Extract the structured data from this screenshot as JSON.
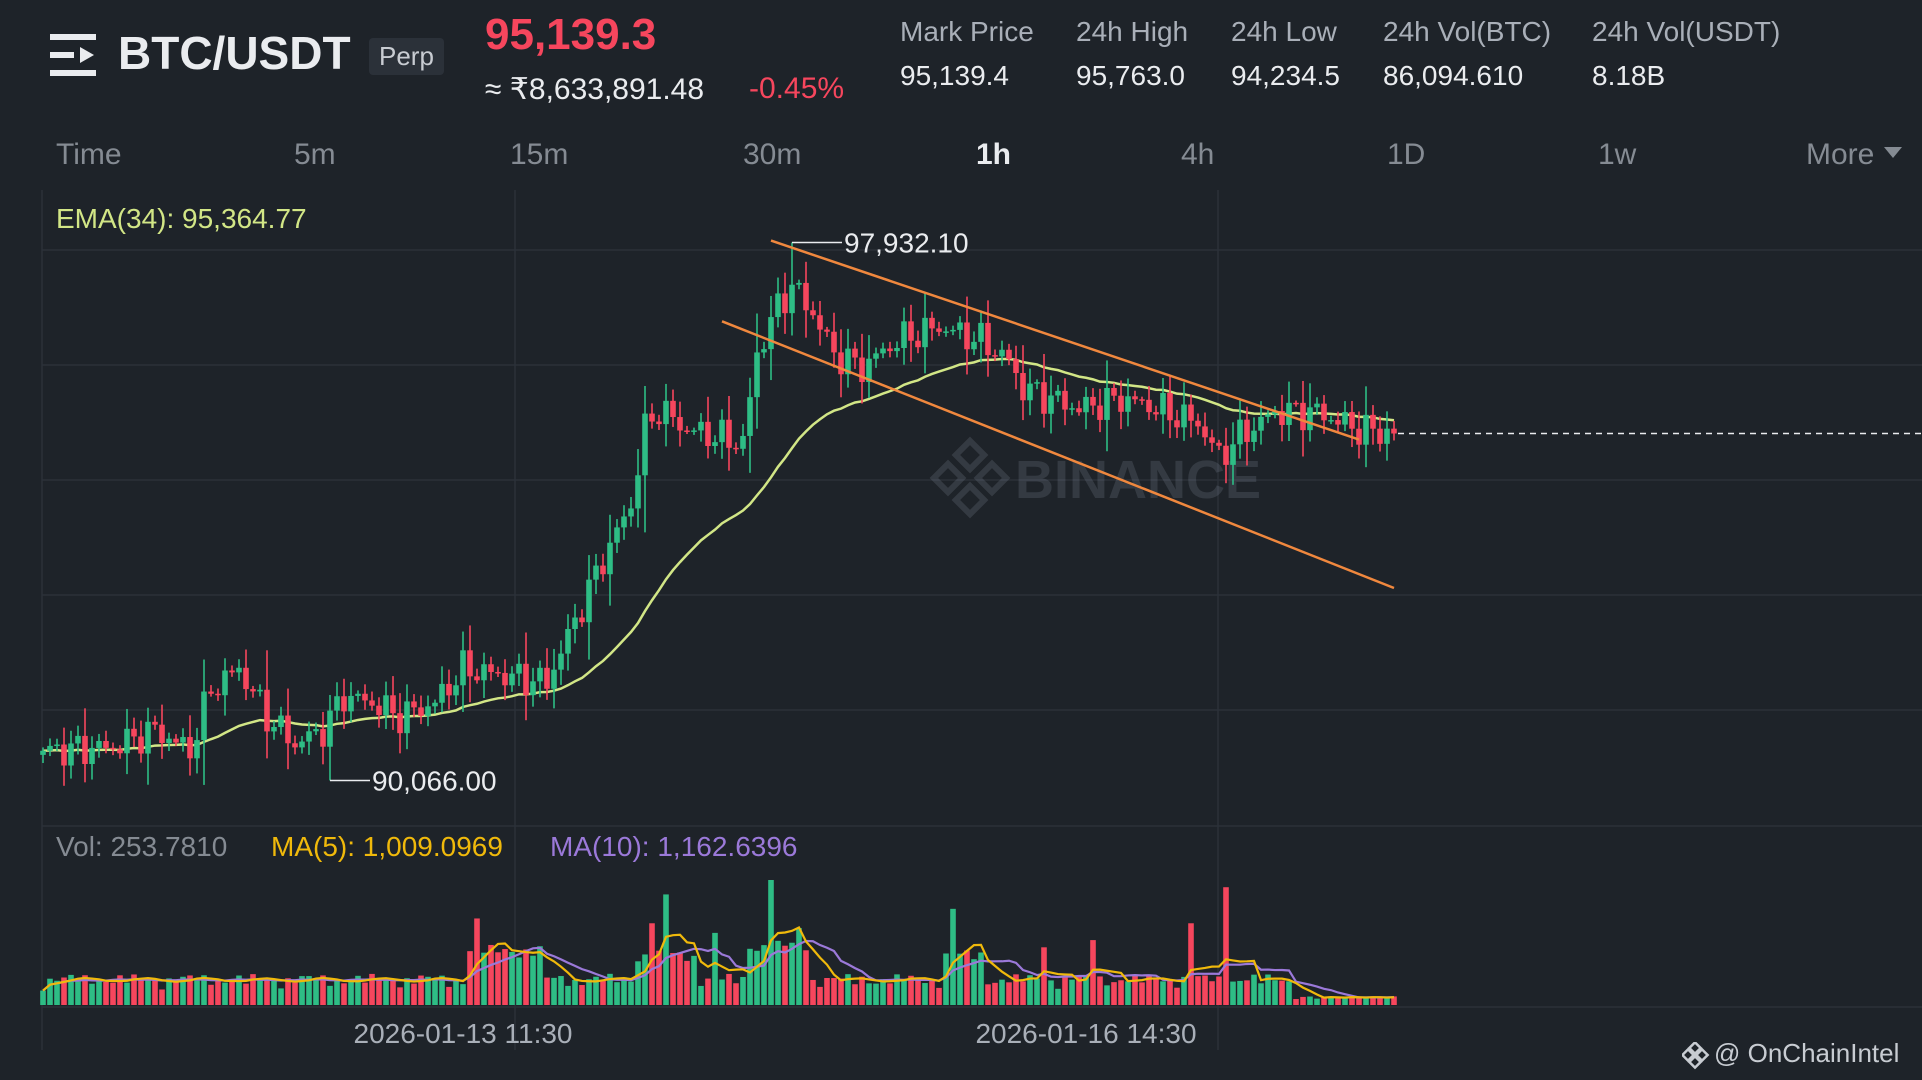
{
  "header": {
    "symbol": "BTC/USDT",
    "badge": "Perp",
    "last_price": "95,139.3",
    "fiat_price": "≈ ₹8,633,891.48",
    "change": "-0.45%",
    "stats": [
      {
        "label": "Mark Price",
        "value": "95,139.4"
      },
      {
        "label": "24h High",
        "value": "95,763.0"
      },
      {
        "label": "24h Low",
        "value": "94,234.5"
      },
      {
        "label": "24h Vol(BTC)",
        "value": "86,094.610"
      },
      {
        "label": "24h Vol(USDT)",
        "value": "8.18B"
      }
    ]
  },
  "intervals": [
    {
      "label": "Time"
    },
    {
      "label": "5m"
    },
    {
      "label": "15m"
    },
    {
      "label": "30m"
    },
    {
      "label": "1h",
      "active": true
    },
    {
      "label": "4h"
    },
    {
      "label": "1D"
    },
    {
      "label": "1w"
    },
    {
      "label": "More"
    }
  ],
  "indicators": {
    "ema": "EMA(34): 95,364.77",
    "vol": "Vol: 253.7810",
    "ma5": "MA(5): 1,009.0969",
    "ma10": "MA(10): 1,162.6396"
  },
  "colors": {
    "up": "#2ebd85",
    "down": "#f6465d",
    "ema": "#d2e686",
    "ma5": "#f0b90b",
    "ma10": "#9b79d9",
    "channel": "#f0883e",
    "grid": "#2b3139"
  },
  "chart_data": {
    "type": "candlestick",
    "interval": "1h",
    "x_labels": [
      {
        "text": "2026-01-13 11:30",
        "index": 60
      },
      {
        "text": "2026-01-16 14:30",
        "index": 149
      }
    ],
    "price_range": [
      89400,
      98700
    ],
    "max_label": {
      "text": "97,932.10",
      "value": 97932.1,
      "index": 107
    },
    "min_label": {
      "text": "90,066.00",
      "value": 90066.0,
      "index": 41
    },
    "last_price": 95139.3,
    "channel": {
      "upper": [
        {
          "index": 104,
          "price": 97960
        },
        {
          "index": 188,
          "price": 95050
        }
      ],
      "lower": [
        {
          "index": 97,
          "price": 96780
        },
        {
          "index": 193,
          "price": 92880
        }
      ]
    },
    "volume_range": [
      0,
      2600
    ],
    "watermark": "BINANCE",
    "credit": "@ OnChainIntel"
  }
}
